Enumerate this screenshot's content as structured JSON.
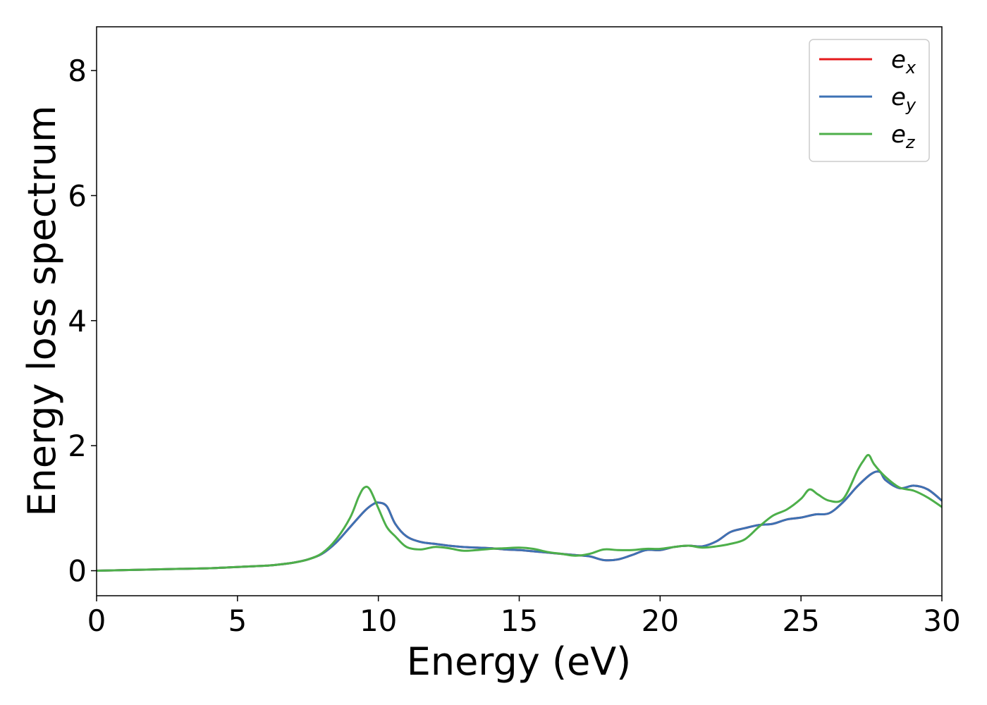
{
  "chart_data": {
    "type": "line",
    "title": "",
    "xlabel": "Energy (eV)",
    "ylabel": "Energy loss spectrum",
    "xlim": [
      0,
      30
    ],
    "ylim": [
      -0.4,
      8.7
    ],
    "xticks": [
      0,
      5,
      10,
      15,
      20,
      25,
      30
    ],
    "yticks": [
      0,
      2,
      4,
      6,
      8
    ],
    "grid": false,
    "legend_position": "top-right",
    "series": [
      {
        "name": "e_x",
        "label_base": "e",
        "label_sub": "x",
        "color": "#e41a1c",
        "x": [
          0,
          1,
          2,
          3,
          4,
          5,
          6,
          6.5,
          7,
          7.5,
          8,
          8.5,
          9,
          9.5,
          9.8,
          10,
          10.3,
          10.6,
          11,
          11.5,
          12,
          12.5,
          13,
          13.5,
          14,
          14.5,
          15,
          15.5,
          16,
          16.5,
          17,
          17.5,
          18,
          18.5,
          19,
          19.5,
          20,
          20.5,
          21,
          21.5,
          22,
          22.5,
          23,
          23.5,
          24,
          24.5,
          25,
          25.5,
          26,
          26.5,
          27,
          27.5,
          27.8,
          28,
          28.5,
          29,
          29.5,
          30
        ],
        "y": [
          0,
          0.01,
          0.02,
          0.03,
          0.04,
          0.06,
          0.08,
          0.1,
          0.13,
          0.18,
          0.27,
          0.45,
          0.7,
          0.95,
          1.06,
          1.09,
          1.03,
          0.75,
          0.55,
          0.46,
          0.43,
          0.4,
          0.38,
          0.37,
          0.36,
          0.34,
          0.33,
          0.31,
          0.29,
          0.27,
          0.25,
          0.23,
          0.17,
          0.18,
          0.25,
          0.33,
          0.33,
          0.38,
          0.4,
          0.39,
          0.47,
          0.62,
          0.68,
          0.73,
          0.75,
          0.82,
          0.85,
          0.9,
          0.92,
          1.1,
          1.35,
          1.55,
          1.58,
          1.45,
          1.32,
          1.36,
          1.3,
          1.12
        ]
      },
      {
        "name": "e_y",
        "label_base": "e",
        "label_sub": "y",
        "color": "#3d72b4",
        "x": [
          0,
          1,
          2,
          3,
          4,
          5,
          6,
          6.5,
          7,
          7.5,
          8,
          8.5,
          9,
          9.5,
          9.8,
          10,
          10.3,
          10.6,
          11,
          11.5,
          12,
          12.5,
          13,
          13.5,
          14,
          14.5,
          15,
          15.5,
          16,
          16.5,
          17,
          17.5,
          18,
          18.5,
          19,
          19.5,
          20,
          20.5,
          21,
          21.5,
          22,
          22.5,
          23,
          23.5,
          24,
          24.5,
          25,
          25.5,
          26,
          26.5,
          27,
          27.5,
          27.8,
          28,
          28.5,
          29,
          29.5,
          30
        ],
        "y": [
          0,
          0.01,
          0.02,
          0.03,
          0.04,
          0.06,
          0.08,
          0.1,
          0.13,
          0.18,
          0.27,
          0.45,
          0.7,
          0.95,
          1.06,
          1.09,
          1.03,
          0.75,
          0.55,
          0.46,
          0.43,
          0.4,
          0.38,
          0.37,
          0.36,
          0.34,
          0.33,
          0.31,
          0.29,
          0.27,
          0.25,
          0.23,
          0.17,
          0.18,
          0.25,
          0.33,
          0.33,
          0.38,
          0.4,
          0.39,
          0.47,
          0.62,
          0.68,
          0.73,
          0.75,
          0.82,
          0.85,
          0.9,
          0.92,
          1.1,
          1.35,
          1.55,
          1.58,
          1.45,
          1.32,
          1.36,
          1.3,
          1.12
        ]
      },
      {
        "name": "e_z",
        "label_base": "e",
        "label_sub": "z",
        "color": "#4daf4a",
        "x": [
          0,
          1,
          2,
          3,
          4,
          5,
          6,
          6.5,
          7,
          7.5,
          8,
          8.5,
          9,
          9.3,
          9.5,
          9.7,
          10,
          10.3,
          10.6,
          11,
          11.5,
          12,
          12.5,
          13,
          13.5,
          14,
          14.5,
          15,
          15.5,
          16,
          16.5,
          17,
          17.5,
          18,
          18.5,
          19,
          19.5,
          20,
          20.5,
          21,
          21.5,
          22,
          22.5,
          23,
          23.5,
          24,
          24.5,
          25,
          25.3,
          25.6,
          26,
          26.5,
          27,
          27.2,
          27.4,
          27.6,
          28,
          28.5,
          29,
          29.5,
          30
        ],
        "y": [
          0,
          0.01,
          0.02,
          0.03,
          0.04,
          0.06,
          0.08,
          0.1,
          0.13,
          0.18,
          0.28,
          0.5,
          0.85,
          1.18,
          1.33,
          1.3,
          1.0,
          0.7,
          0.55,
          0.38,
          0.34,
          0.38,
          0.36,
          0.32,
          0.33,
          0.35,
          0.36,
          0.37,
          0.35,
          0.3,
          0.27,
          0.24,
          0.27,
          0.34,
          0.33,
          0.33,
          0.35,
          0.35,
          0.38,
          0.4,
          0.37,
          0.39,
          0.43,
          0.5,
          0.7,
          0.88,
          0.98,
          1.15,
          1.3,
          1.22,
          1.12,
          1.15,
          1.6,
          1.75,
          1.85,
          1.7,
          1.5,
          1.33,
          1.28,
          1.17,
          1.02
        ]
      }
    ]
  }
}
